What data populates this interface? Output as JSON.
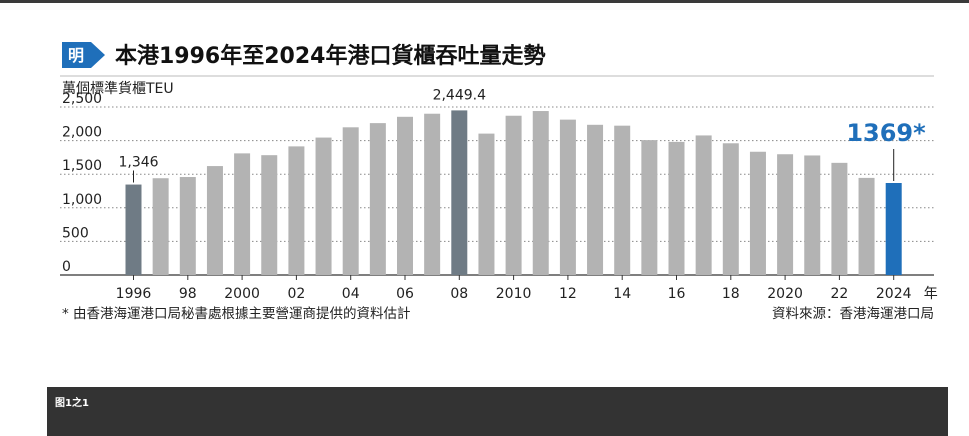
{
  "header": {
    "logo_char": "明",
    "title": "本港1996年至2024年港口貨櫃吞吐量走勢"
  },
  "chart_data": {
    "type": "bar",
    "title": "本港1996年至2024年港口貨櫃吞吐量走勢",
    "ylabel": "萬個標準貨櫃TEU",
    "xlabel": "年",
    "ylim": [
      0,
      2500
    ],
    "yticks": [
      0,
      500,
      1000,
      1500,
      2000,
      2500
    ],
    "ytick_labels": [
      "0",
      "500",
      "1,000",
      "1,500",
      "2,000",
      "2,500"
    ],
    "grid": true,
    "categories": [
      "1996",
      "1997",
      "1998",
      "1999",
      "2000",
      "2001",
      "2002",
      "2003",
      "2004",
      "2005",
      "2006",
      "2007",
      "2008",
      "2009",
      "2010",
      "2011",
      "2012",
      "2013",
      "2014",
      "2015",
      "2016",
      "2017",
      "2018",
      "2019",
      "2020",
      "2021",
      "2022",
      "2023",
      "2024"
    ],
    "x_tick_labels": [
      "1996",
      "98",
      "2000",
      "02",
      "04",
      "06",
      "08",
      "2010",
      "12",
      "14",
      "16",
      "18",
      "2020",
      "22",
      "2024"
    ],
    "x_tick_years": [
      "1996",
      "1998",
      "2000",
      "2002",
      "2004",
      "2006",
      "2008",
      "2010",
      "2012",
      "2014",
      "2016",
      "2018",
      "2020",
      "2022",
      "2024"
    ],
    "values": [
      1346,
      1440,
      1458,
      1621,
      1810,
      1783,
      1914,
      2045,
      2198,
      2260,
      2354,
      2400,
      2449.4,
      2104,
      2370,
      2440,
      2312,
      2235,
      2222,
      2007,
      1981,
      2077,
      1960,
      1834,
      1797,
      1779,
      1669,
      1445,
      1369
    ],
    "bar_colors": {
      "default": "#b3b3b3",
      "highlight": "#6f7b85",
      "latest": "#1f6fba"
    },
    "highlight_years": [
      "1996",
      "2008"
    ],
    "latest_year": "2024",
    "annotations": [
      {
        "year": "1996",
        "text": "1,346",
        "style": "normal"
      },
      {
        "year": "2008",
        "text": "2,449.4",
        "style": "normal"
      },
      {
        "year": "2024",
        "text": "1369*",
        "style": "latest"
      }
    ],
    "footnote": "* 由香港海運港口局秘書處根據主要營運商提供的資料估計",
    "source": "資料來源：香港海運港口局"
  },
  "caption": {
    "label": "图1之1"
  }
}
